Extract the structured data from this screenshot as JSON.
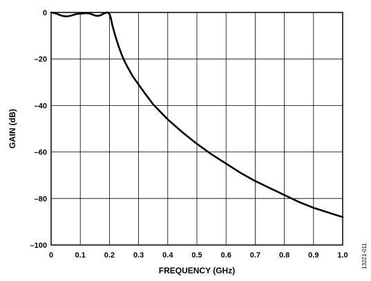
{
  "chart_data": {
    "type": "line",
    "xlabel": "FREQUENCY (GHz)",
    "ylabel": "GAIN (dB)",
    "xlim": [
      0,
      1.0
    ],
    "ylim": [
      -100,
      0
    ],
    "xticks": [
      0,
      0.1,
      0.2,
      0.3,
      0.4,
      0.5,
      0.6,
      0.7,
      0.8,
      0.9,
      1.0
    ],
    "xtick_labels": [
      "0",
      "0.1",
      "0.2",
      "0.3",
      "0.4",
      "0.5",
      "0.6",
      "0.7",
      "0.8",
      "0.9",
      "1.0"
    ],
    "yticks": [
      0,
      -20,
      -40,
      -60,
      -80,
      -100
    ],
    "ytick_labels": [
      "0",
      "–20",
      "–40",
      "–60",
      "–80",
      "–100"
    ],
    "grid": true,
    "series": [
      {
        "x": [
          0,
          0.01,
          0.02,
          0.03,
          0.04,
          0.05,
          0.06,
          0.07,
          0.08,
          0.09,
          0.1,
          0.11,
          0.12,
          0.13,
          0.14,
          0.15,
          0.16,
          0.17,
          0.18,
          0.19,
          0.195,
          0.2,
          0.205,
          0.21,
          0.22,
          0.23,
          0.24,
          0.25,
          0.26,
          0.28,
          0.3,
          0.32,
          0.35,
          0.4,
          0.45,
          0.5,
          0.55,
          0.6,
          0.65,
          0.7,
          0.75,
          0.8,
          0.85,
          0.9,
          0.95,
          1.0
        ],
        "y": [
          0,
          -0.2,
          -0.6,
          -1.1,
          -1.5,
          -1.7,
          -1.6,
          -1.3,
          -0.9,
          -0.6,
          -0.5,
          -0.4,
          -0.3,
          -0.4,
          -0.8,
          -1.3,
          -1.5,
          -1.2,
          -0.5,
          0,
          -0.1,
          -0.6,
          -2.5,
          -5.5,
          -10,
          -14,
          -17.5,
          -20.5,
          -23,
          -27.5,
          -31,
          -34.5,
          -39.5,
          -46,
          -51.5,
          -56.5,
          -61,
          -65,
          -69,
          -72.5,
          -75.5,
          -78.5,
          -81.5,
          -84,
          -86,
          -88
        ]
      }
    ]
  },
  "figure_id": "13221-011",
  "colors": {
    "line": "#000000",
    "grid": "#000000",
    "background": "#ffffff"
  }
}
